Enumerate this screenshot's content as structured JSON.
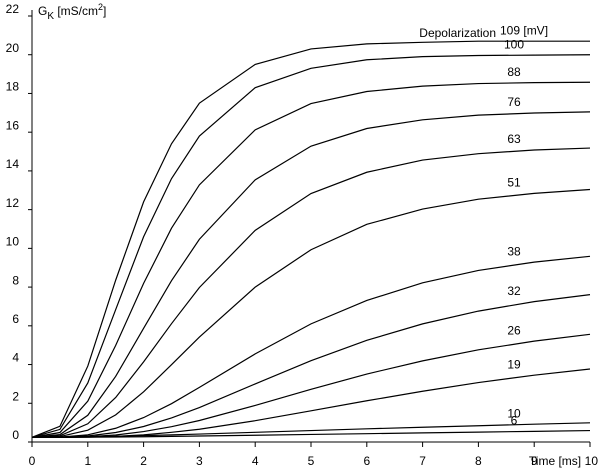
{
  "chart_data": {
    "type": "line",
    "ylabel": [
      "G",
      "K",
      " [mS/cm",
      "2",
      "]"
    ],
    "xlabel": "Time [ms]",
    "annotation": "Depolarization",
    "x": [
      0,
      0.5,
      1,
      1.5,
      2,
      2.5,
      3,
      4,
      5,
      6,
      7,
      8,
      9,
      10
    ],
    "xlim": [
      0,
      10
    ],
    "xticks": [
      0,
      1,
      2,
      3,
      4,
      5,
      6,
      7,
      8,
      9,
      10
    ],
    "ylim": [
      0,
      22
    ],
    "yticks": [
      0,
      2,
      4,
      6,
      8,
      10,
      12,
      14,
      16,
      18,
      20,
      22
    ],
    "grid": false,
    "series": [
      {
        "name": "109 [mV]",
        "color": "#000000",
        "values": [
          0.24,
          0.81,
          3.92,
          8.36,
          12.4,
          15.4,
          17.5,
          19.5,
          20.3,
          20.56,
          20.64,
          20.7,
          20.7,
          20.7
        ]
      },
      {
        "name": "100",
        "color": "#000000",
        "values": [
          0.24,
          0.65,
          3.05,
          6.84,
          10.6,
          13.6,
          15.8,
          18.3,
          19.3,
          19.74,
          19.9,
          19.96,
          19.98,
          20.0
        ]
      },
      {
        "name": "88",
        "color": "#000000",
        "values": [
          0.24,
          0.49,
          2.11,
          4.99,
          8.19,
          11.04,
          13.28,
          16.12,
          17.48,
          18.1,
          18.38,
          18.51,
          18.56,
          18.58
        ]
      },
      {
        "name": "76",
        "color": "#000000",
        "values": [
          0.24,
          0.38,
          1.38,
          3.39,
          5.87,
          8.33,
          10.47,
          13.54,
          15.28,
          16.19,
          16.64,
          16.88,
          16.99,
          17.05
        ]
      },
      {
        "name": "63",
        "color": "#000000",
        "values": [
          0.24,
          0.32,
          0.94,
          2.3,
          4.14,
          6.11,
          7.98,
          10.93,
          12.83,
          13.93,
          14.56,
          14.89,
          15.08,
          15.18
        ]
      },
      {
        "name": "51",
        "color": "#000000",
        "values": [
          0.24,
          0.28,
          0.61,
          1.4,
          2.59,
          3.99,
          5.42,
          8.0,
          9.93,
          11.24,
          12.03,
          12.54,
          12.84,
          13.04
        ]
      },
      {
        "name": "38",
        "color": "#000000",
        "values": [
          0.24,
          0.25,
          0.37,
          0.71,
          1.26,
          1.98,
          2.82,
          4.55,
          6.1,
          7.31,
          8.22,
          8.86,
          9.29,
          9.59
        ]
      },
      {
        "name": "32",
        "color": "#000000",
        "values": [
          0.24,
          0.25,
          0.31,
          0.49,
          0.8,
          1.24,
          1.78,
          3.0,
          4.2,
          5.25,
          6.1,
          6.76,
          7.25,
          7.61
        ]
      },
      {
        "name": "26",
        "color": "#000000",
        "values": [
          0.24,
          0.24,
          0.27,
          0.36,
          0.54,
          0.79,
          1.11,
          1.89,
          2.72,
          3.51,
          4.19,
          4.76,
          5.21,
          5.56
        ]
      },
      {
        "name": "19",
        "color": "#000000",
        "values": [
          0.24,
          0.24,
          0.25,
          0.29,
          0.37,
          0.5,
          0.66,
          1.1,
          1.61,
          2.13,
          2.62,
          3.07,
          3.45,
          3.77
        ]
      },
      {
        "name": "10",
        "color": "#000000",
        "values": [
          0.24,
          0.25,
          0.27,
          0.3,
          0.33,
          0.37,
          0.41,
          0.5,
          0.59,
          0.68,
          0.76,
          0.84,
          0.92,
          0.99
        ]
      },
      {
        "name": "6",
        "color": "#000000",
        "values": [
          0.24,
          0.24,
          0.25,
          0.26,
          0.27,
          0.29,
          0.31,
          0.35,
          0.39,
          0.43,
          0.47,
          0.51,
          0.55,
          0.59
        ]
      }
    ]
  }
}
